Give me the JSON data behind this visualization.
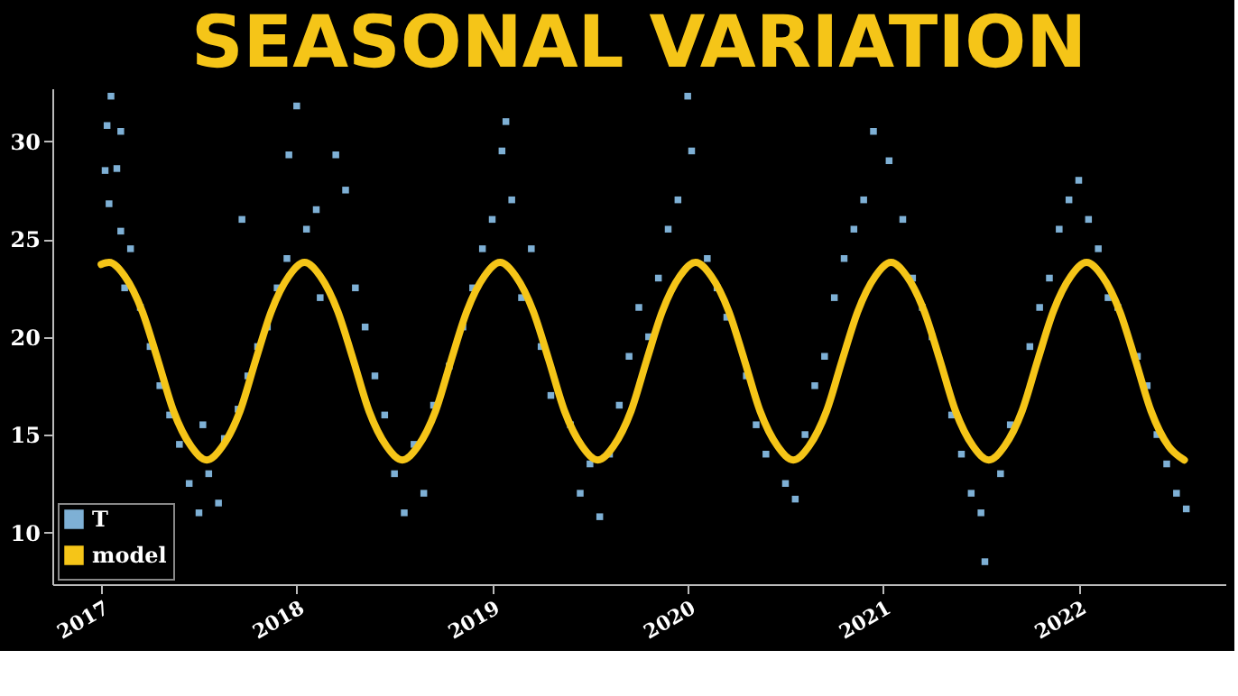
{
  "chart_data": {
    "type": "scatter",
    "title": "SEASONAL VARIATION",
    "xlim": [
      2016.75,
      2022.75
    ],
    "xticks": [
      2017,
      2018,
      2019,
      2020,
      2021,
      2022
    ],
    "ylim": [
      7.35,
      32.7
    ],
    "yticks": [
      10,
      15,
      20,
      25,
      30
    ],
    "grid": false,
    "legend": "bottom left",
    "series": [
      {
        "name": "T",
        "marker": "square",
        "color": "#7eb0d5",
        "x": [
          2017.05,
          2017.03,
          2017.1,
          2017.02,
          2017.08,
          2017.04,
          2017.1,
          2017.15,
          2017.12,
          2017.2,
          2017.25,
          2017.3,
          2017.35,
          2017.4,
          2017.45,
          2017.5,
          2017.55,
          2017.6,
          2017.52,
          2017.63,
          2017.7,
          2017.75,
          2017.72,
          2017.8,
          2017.85,
          2017.9,
          2017.95,
          2017.96,
          2018.0,
          2018.05,
          2018.1,
          2018.12,
          2018.2,
          2018.25,
          2018.3,
          2018.35,
          2018.4,
          2018.45,
          2018.5,
          2018.55,
          2018.6,
          2018.65,
          2018.7,
          2018.78,
          2018.85,
          2018.9,
          2018.95,
          2019.0,
          2019.05,
          2019.07,
          2019.1,
          2019.15,
          2019.2,
          2019.25,
          2019.3,
          2019.4,
          2019.45,
          2019.5,
          2019.55,
          2019.6,
          2019.65,
          2019.7,
          2019.75,
          2019.8,
          2019.85,
          2019.9,
          2019.95,
          2020.0,
          2020.02,
          2020.1,
          2020.15,
          2020.2,
          2020.3,
          2020.35,
          2020.4,
          2020.5,
          2020.55,
          2020.6,
          2020.65,
          2020.7,
          2020.75,
          2020.8,
          2020.85,
          2020.9,
          2020.95,
          2021.03,
          2021.1,
          2021.15,
          2021.2,
          2021.25,
          2021.35,
          2021.4,
          2021.45,
          2021.5,
          2021.52,
          2021.6,
          2021.65,
          2021.75,
          2021.8,
          2021.85,
          2021.9,
          2021.95,
          2022.0,
          2022.05,
          2022.1,
          2022.15,
          2022.2,
          2022.3,
          2022.35,
          2022.4,
          2022.45,
          2022.5,
          2022.55
        ],
        "values": [
          32.3,
          30.8,
          30.5,
          28.5,
          28.6,
          26.8,
          25.4,
          24.5,
          22.5,
          21.5,
          19.5,
          17.5,
          16,
          14.5,
          12.5,
          11,
          13,
          11.5,
          15.5,
          14.8,
          16.3,
          18,
          26,
          19.5,
          20.5,
          22.5,
          24,
          29.3,
          31.8,
          25.5,
          26.5,
          22,
          29.3,
          27.5,
          22.5,
          20.5,
          18,
          16,
          13,
          11,
          14.5,
          12,
          16.5,
          18.5,
          20.5,
          22.5,
          24.5,
          26,
          29.5,
          31,
          27,
          22,
          24.5,
          19.5,
          17,
          15.5,
          12,
          13.5,
          10.8,
          14,
          16.5,
          19,
          21.5,
          20,
          23,
          25.5,
          27,
          32.3,
          29.5,
          24,
          22.5,
          21,
          18,
          15.5,
          14,
          12.5,
          11.7,
          15,
          17.5,
          19,
          22,
          24,
          25.5,
          27,
          30.5,
          29,
          26,
          23,
          21.5,
          20,
          16,
          14,
          12,
          11,
          8.5,
          13,
          15.5,
          19.5,
          21.5,
          23,
          25.5,
          27,
          28,
          26,
          24.5,
          22,
          21.5,
          19,
          17.5,
          15,
          13.5,
          12,
          11.2
        ]
      },
      {
        "name": "model",
        "type": "line",
        "marker": "none",
        "line_style": "solid",
        "color": "#f5c518",
        "x": [
          2017.0,
          2017.04,
          2017.12,
          2017.21,
          2017.29,
          2017.37,
          2017.46,
          2017.54,
          2017.62,
          2017.71,
          2017.79,
          2017.87,
          2017.96,
          2018.04,
          2018.12,
          2018.21,
          2018.29,
          2018.37,
          2018.46,
          2018.54,
          2018.62,
          2018.71,
          2018.79,
          2018.87,
          2018.96,
          2019.04,
          2019.12,
          2019.21,
          2019.29,
          2019.37,
          2019.46,
          2019.54,
          2019.62,
          2019.71,
          2019.79,
          2019.87,
          2019.96,
          2020.04,
          2020.12,
          2020.21,
          2020.29,
          2020.37,
          2020.46,
          2020.54,
          2020.62,
          2020.71,
          2020.79,
          2020.87,
          2020.96,
          2021.04,
          2021.12,
          2021.21,
          2021.29,
          2021.37,
          2021.46,
          2021.54,
          2021.62,
          2021.71,
          2021.79,
          2021.87,
          2021.96,
          2022.04,
          2022.12,
          2022.21,
          2022.29,
          2022.37,
          2022.46,
          2022.54
        ],
        "values": [
          23.7,
          23.8,
          23.1,
          21.3,
          18.8,
          16.2,
          14.4,
          13.7,
          14.4,
          16.2,
          18.8,
          21.3,
          23.1,
          23.8,
          23.1,
          21.3,
          18.8,
          16.2,
          14.4,
          13.7,
          14.4,
          16.2,
          18.8,
          21.3,
          23.1,
          23.8,
          23.1,
          21.3,
          18.8,
          16.2,
          14.4,
          13.7,
          14.4,
          16.2,
          18.8,
          21.3,
          23.1,
          23.8,
          23.1,
          21.3,
          18.8,
          16.2,
          14.4,
          13.7,
          14.4,
          16.2,
          18.8,
          21.3,
          23.1,
          23.8,
          23.1,
          21.3,
          18.8,
          16.2,
          14.4,
          13.7,
          14.4,
          16.2,
          18.8,
          21.3,
          23.1,
          23.8,
          23.1,
          21.3,
          18.8,
          16.2,
          14.4,
          13.7
        ]
      }
    ]
  }
}
